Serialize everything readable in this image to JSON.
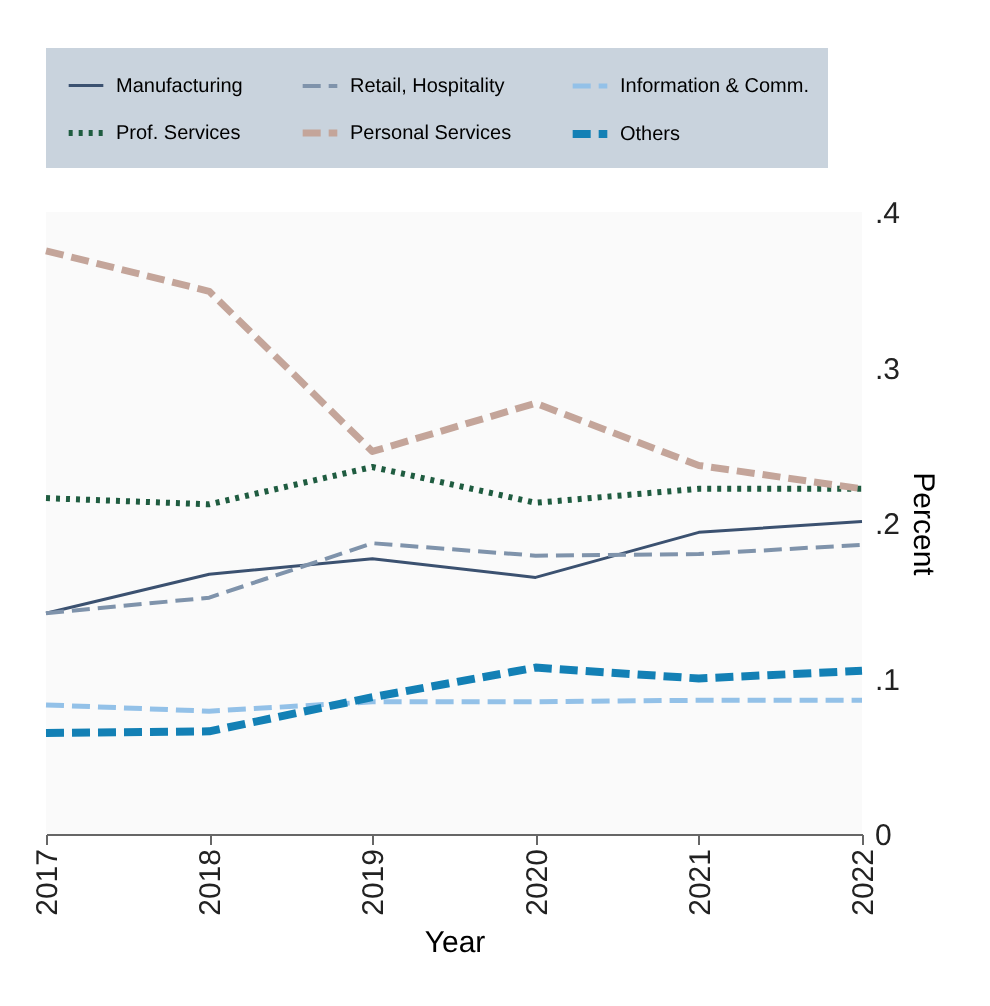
{
  "chart_data": {
    "type": "line",
    "xlabel": "Year",
    "ylabel": "Percent",
    "x": [
      2017,
      2018,
      2019,
      2020,
      2021,
      2022
    ],
    "xlim": [
      2017,
      2022
    ],
    "xticks": [
      2017,
      2018,
      2019,
      2020,
      2021,
      2022
    ],
    "ylim": [
      0,
      0.4
    ],
    "yticks": [
      {
        "value": 0,
        "label": "0"
      },
      {
        "value": 0.1,
        "label": ".1"
      },
      {
        "value": 0.2,
        "label": ".2"
      },
      {
        "value": 0.3,
        "label": ".3"
      },
      {
        "value": 0.4,
        "label": ".4"
      }
    ],
    "grid": false,
    "legend": "top",
    "series": [
      {
        "name": "Manufacturing",
        "color": "#3b5170",
        "line_style": "solid",
        "values": [
          0.142,
          0.167,
          0.177,
          0.165,
          0.194,
          0.201
        ]
      },
      {
        "name": "Retail, Hospitality",
        "color": "#7f93ab",
        "line_style": "dashed",
        "values": [
          0.142,
          0.152,
          0.187,
          0.179,
          0.18,
          0.186
        ]
      },
      {
        "name": "Information & Comm.",
        "color": "#93c1e8",
        "line_style": "dashed",
        "values": [
          0.083,
          0.079,
          0.085,
          0.085,
          0.086,
          0.086
        ]
      },
      {
        "name": "Prof. Services",
        "color": "#1f5c40",
        "line_style": "dotted",
        "values": [
          0.216,
          0.212,
          0.236,
          0.213,
          0.222,
          0.222
        ]
      },
      {
        "name": "Personal Services",
        "color": "#c4a59a",
        "line_style": "dashed",
        "values": [
          0.375,
          0.349,
          0.246,
          0.277,
          0.237,
          0.222
        ]
      },
      {
        "name": "Others",
        "color": "#1380b5",
        "line_style": "dashed",
        "values": [
          0.065,
          0.066,
          0.088,
          0.107,
          0.1,
          0.105
        ]
      }
    ]
  }
}
